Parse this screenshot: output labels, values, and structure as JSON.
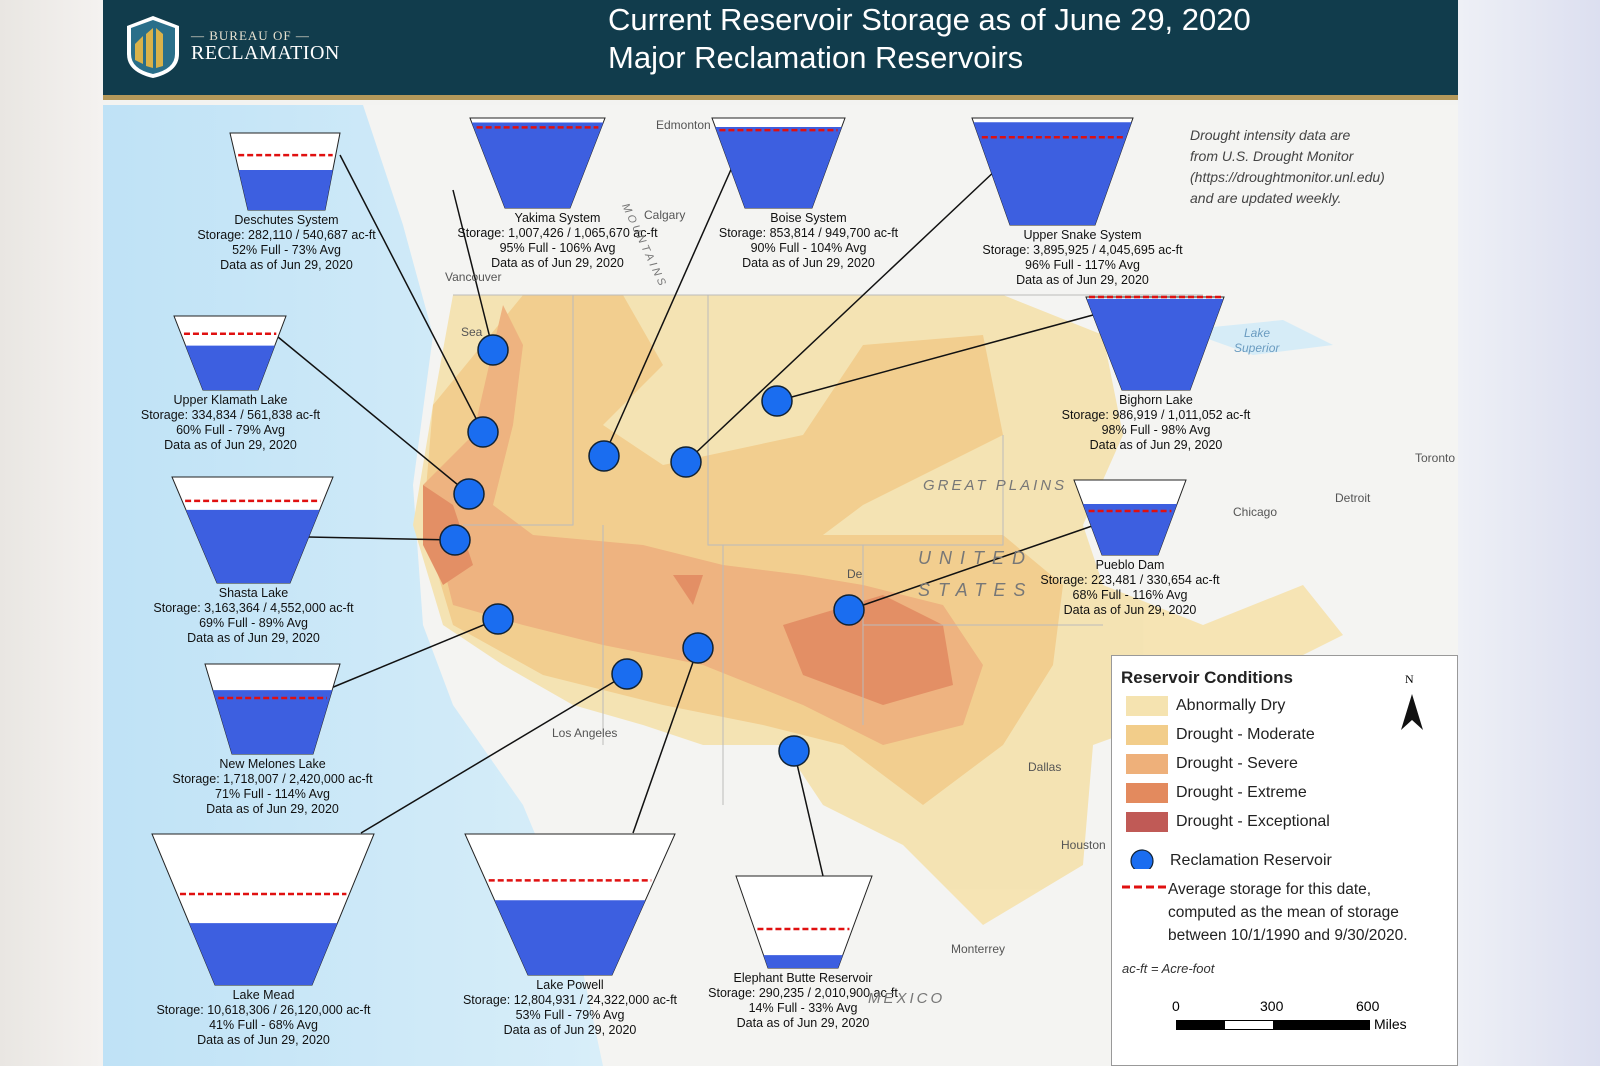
{
  "header": {
    "org_line1": "— BUREAU OF —",
    "org_line2": "RECLAMATION",
    "title_line1": "Current Reservoir Storage as of June 29, 2020",
    "title_line2": "Major Reclamation Reservoirs"
  },
  "note": [
    "Drought intensity data are",
    "from U.S. Drought Monitor",
    "(https://droughtmonitor.unl.edu)",
    "and are updated weekly."
  ],
  "reservoirs": [
    {
      "name": "Deschutes System",
      "storage": "Storage: 282,110 / 540,687 ac-ft",
      "pct": "52% Full - 73% Avg",
      "date": "Data as of Jun 29, 2020",
      "full": 52,
      "avg": 73
    },
    {
      "name": "Yakima System",
      "storage": "Storage: 1,007,426 / 1,065,670 ac-ft",
      "pct": "95% Full - 106% Avg",
      "date": "Data as of Jun 29, 2020",
      "full": 95,
      "avg": 106
    },
    {
      "name": "Boise System",
      "storage": "Storage: 853,814 / 949,700 ac-ft",
      "pct": "90% Full - 104% Avg",
      "date": "Data as of Jun 29, 2020",
      "full": 90,
      "avg": 104
    },
    {
      "name": "Upper Snake System",
      "storage": "Storage: 3,895,925 / 4,045,695 ac-ft",
      "pct": "96% Full - 117% Avg",
      "date": "Data as of Jun 29, 2020",
      "full": 96,
      "avg": 117
    },
    {
      "name": "Upper Klamath Lake",
      "storage": "Storage: 334,834 / 561,838 ac-ft",
      "pct": "60% Full - 79% Avg",
      "date": "Data as of Jun 29, 2020",
      "full": 60,
      "avg": 79
    },
    {
      "name": "Shasta Lake",
      "storage": "Storage: 3,163,364 / 4,552,000 ac-ft",
      "pct": "69% Full - 89% Avg",
      "date": "Data as of Jun 29, 2020",
      "full": 69,
      "avg": 89
    },
    {
      "name": "New Melones Lake",
      "storage": "Storage: 1,718,007 / 2,420,000 ac-ft",
      "pct": "71% Full - 114% Avg",
      "date": "Data as of Jun 29, 2020",
      "full": 71,
      "avg": 114
    },
    {
      "name": "Bighorn Lake",
      "storage": "Storage: 986,919 / 1,011,052 ac-ft",
      "pct": "98% Full - 98% Avg",
      "date": "Data as of Jun 29, 2020",
      "full": 98,
      "avg": 98
    },
    {
      "name": "Pueblo Dam",
      "storage": "Storage: 223,481 / 330,654 ac-ft",
      "pct": "68% Full - 116% Avg",
      "date": "Data as of Jun 29, 2020",
      "full": 68,
      "avg": 116
    },
    {
      "name": "Lake Mead",
      "storage": "Storage: 10,618,306 / 26,120,000 ac-ft",
      "pct": "41% Full - 68% Avg",
      "date": "Data as of Jun 29, 2020",
      "full": 41,
      "avg": 68
    },
    {
      "name": "Lake Powell",
      "storage": "Storage: 12,804,931 / 24,322,000 ac-ft",
      "pct": "53% Full - 79% Avg",
      "date": "Data as of Jun 29, 2020",
      "full": 53,
      "avg": 79
    },
    {
      "name": "Elephant Butte Reservoir",
      "storage": "Storage: 290,235 / 2,010,900 ac-ft",
      "pct": "14% Full - 33% Avg",
      "date": "Data as of Jun 29, 2020",
      "full": 14,
      "avg": 33
    }
  ],
  "places": {
    "edmonton": "Edmonton",
    "calgary": "Calgary",
    "vancouver": "Vancouver",
    "seattle": "Sea",
    "los_angeles": "Los Angeles",
    "dallas": "Dallas",
    "houston": "Houston",
    "monterrey": "Monterrey",
    "chicago": "Chicago",
    "detroit": "Detroit",
    "toronto": "Toronto",
    "denver": "De",
    "great_plains": "GREAT PLAINS",
    "united": "UNITED",
    "states": "STATES",
    "mexico": "MEXICO",
    "lake_superior_1": "Lake",
    "lake_superior_2": "Superior",
    "mountains": "MOUNTAINS"
  },
  "legend": {
    "title": "Reservoir Conditions",
    "north": "N",
    "items": [
      {
        "label": "Abnormally Dry",
        "color": "#f5e3b0"
      },
      {
        "label": "Drought - Moderate",
        "color": "#f2cd8a"
      },
      {
        "label": "Drought - Severe",
        "color": "#eeb07a"
      },
      {
        "label": "Drought - Extreme",
        "color": "#e38a5e"
      },
      {
        "label": "Drought - Exceptional",
        "color": "#c05a56"
      }
    ],
    "reservoir_label": "Reclamation Reservoir",
    "avg_label": [
      "Average storage for this date,",
      "computed as the mean of storage",
      "between 10/1/1990 and 9/30/2020."
    ],
    "acft": "ac-ft = Acre-foot",
    "scale": {
      "t0": "0",
      "t1": "300",
      "t2": "600",
      "unit": "Miles"
    }
  }
}
